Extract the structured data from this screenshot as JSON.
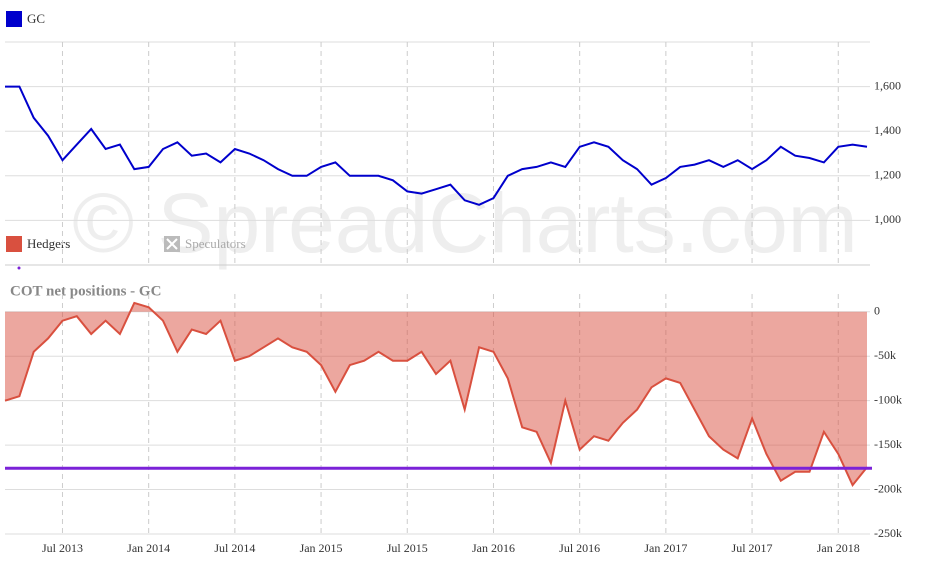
{
  "chart_data": [
    {
      "type": "line",
      "legend_position": "top-left",
      "x": [
        "2013-03",
        "2013-04",
        "2013-05",
        "2013-06",
        "2013-07",
        "2013-08",
        "2013-09",
        "2013-10",
        "2013-11",
        "2013-12",
        "2014-01",
        "2014-02",
        "2014-03",
        "2014-04",
        "2014-05",
        "2014-06",
        "2014-07",
        "2014-08",
        "2014-09",
        "2014-10",
        "2014-11",
        "2014-12",
        "2015-01",
        "2015-02",
        "2015-03",
        "2015-04",
        "2015-05",
        "2015-06",
        "2015-07",
        "2015-08",
        "2015-09",
        "2015-10",
        "2015-11",
        "2015-12",
        "2016-01",
        "2016-02",
        "2016-03",
        "2016-04",
        "2016-05",
        "2016-06",
        "2016-07",
        "2016-08",
        "2016-09",
        "2016-10",
        "2016-11",
        "2016-12",
        "2017-01",
        "2017-02",
        "2017-03",
        "2017-04",
        "2017-05",
        "2017-06",
        "2017-07",
        "2017-08",
        "2017-09",
        "2017-10",
        "2017-11",
        "2017-12",
        "2018-01",
        "2018-02",
        "2018-03"
      ],
      "series": [
        {
          "name": "GC",
          "color": "#0000cc",
          "values": [
            1600,
            1600,
            1460,
            1380,
            1270,
            1340,
            1410,
            1320,
            1340,
            1230,
            1240,
            1320,
            1350,
            1290,
            1300,
            1260,
            1320,
            1300,
            1270,
            1230,
            1200,
            1200,
            1240,
            1260,
            1200,
            1200,
            1200,
            1180,
            1130,
            1120,
            1140,
            1160,
            1090,
            1070,
            1100,
            1200,
            1230,
            1240,
            1260,
            1240,
            1330,
            1350,
            1330,
            1270,
            1230,
            1160,
            1190,
            1240,
            1250,
            1270,
            1240,
            1270,
            1230,
            1270,
            1330,
            1290,
            1280,
            1260,
            1330,
            1340,
            1330
          ]
        }
      ],
      "xlim": [
        "2013-03",
        "2018-03"
      ],
      "ylim": [
        800,
        1800
      ],
      "yticks": [
        {
          "value": 1000,
          "label": "1,000"
        },
        {
          "value": 1200,
          "label": "1,200"
        },
        {
          "value": 1400,
          "label": "1,400"
        },
        {
          "value": 1600,
          "label": "1,600"
        }
      ],
      "grid": true,
      "watermark": "© SpreadCharts.com"
    },
    {
      "type": "area",
      "title": "COT net positions - GC",
      "legend_position": "top-left",
      "x": [
        "2013-03",
        "2013-04",
        "2013-05",
        "2013-06",
        "2013-07",
        "2013-08",
        "2013-09",
        "2013-10",
        "2013-11",
        "2013-12",
        "2014-01",
        "2014-02",
        "2014-03",
        "2014-04",
        "2014-05",
        "2014-06",
        "2014-07",
        "2014-08",
        "2014-09",
        "2014-10",
        "2014-11",
        "2014-12",
        "2015-01",
        "2015-02",
        "2015-03",
        "2015-04",
        "2015-05",
        "2015-06",
        "2015-07",
        "2015-08",
        "2015-09",
        "2015-10",
        "2015-11",
        "2015-12",
        "2016-01",
        "2016-02",
        "2016-03",
        "2016-04",
        "2016-05",
        "2016-06",
        "2016-07",
        "2016-08",
        "2016-09",
        "2016-10",
        "2016-11",
        "2016-12",
        "2017-01",
        "2017-02",
        "2017-03",
        "2017-04",
        "2017-05",
        "2017-06",
        "2017-07",
        "2017-08",
        "2017-09",
        "2017-10",
        "2017-11",
        "2017-12",
        "2018-01",
        "2018-02",
        "2018-03"
      ],
      "series": [
        {
          "name": "Hedgers",
          "color": "#d9503f",
          "values": [
            -100000,
            -95000,
            -45000,
            -30000,
            -10000,
            -5000,
            -25000,
            -10000,
            -25000,
            10000,
            5000,
            -10000,
            -45000,
            -20000,
            -25000,
            -10000,
            -55000,
            -50000,
            -40000,
            -30000,
            -40000,
            -45000,
            -60000,
            -90000,
            -60000,
            -55000,
            -45000,
            -55000,
            -55000,
            -45000,
            -70000,
            -55000,
            -110000,
            -40000,
            -45000,
            -75000,
            -130000,
            -135000,
            -170000,
            -100000,
            -155000,
            -140000,
            -145000,
            -125000,
            -110000,
            -85000,
            -75000,
            -80000,
            -110000,
            -140000,
            -155000,
            -165000,
            -120000,
            -160000,
            -190000,
            -180000,
            -180000,
            -135000,
            -160000,
            -195000,
            -175000
          ]
        }
      ],
      "hidden_series": [
        "Speculators"
      ],
      "reference_line": {
        "value": -176000,
        "color": "#7b22d8"
      },
      "xlim": [
        "2013-03",
        "2018-03"
      ],
      "xticks": [
        {
          "value": "2013-07",
          "label": "Jul 2013"
        },
        {
          "value": "2014-01",
          "label": "Jan 2014"
        },
        {
          "value": "2014-07",
          "label": "Jul 2014"
        },
        {
          "value": "2015-01",
          "label": "Jan 2015"
        },
        {
          "value": "2015-07",
          "label": "Jul 2015"
        },
        {
          "value": "2016-01",
          "label": "Jan 2016"
        },
        {
          "value": "2016-07",
          "label": "Jul 2016"
        },
        {
          "value": "2017-01",
          "label": "Jan 2017"
        },
        {
          "value": "2017-07",
          "label": "Jul 2017"
        },
        {
          "value": "2018-01",
          "label": "Jan 2018"
        }
      ],
      "ylim": [
        -250000,
        20000
      ],
      "yticks": [
        {
          "value": -250000,
          "label": "-250k"
        },
        {
          "value": -200000,
          "label": "-200k"
        },
        {
          "value": -150000,
          "label": "-150k"
        },
        {
          "value": -100000,
          "label": "-100k"
        },
        {
          "value": -50000,
          "label": "-50k"
        },
        0
      ],
      "grid": true
    }
  ]
}
